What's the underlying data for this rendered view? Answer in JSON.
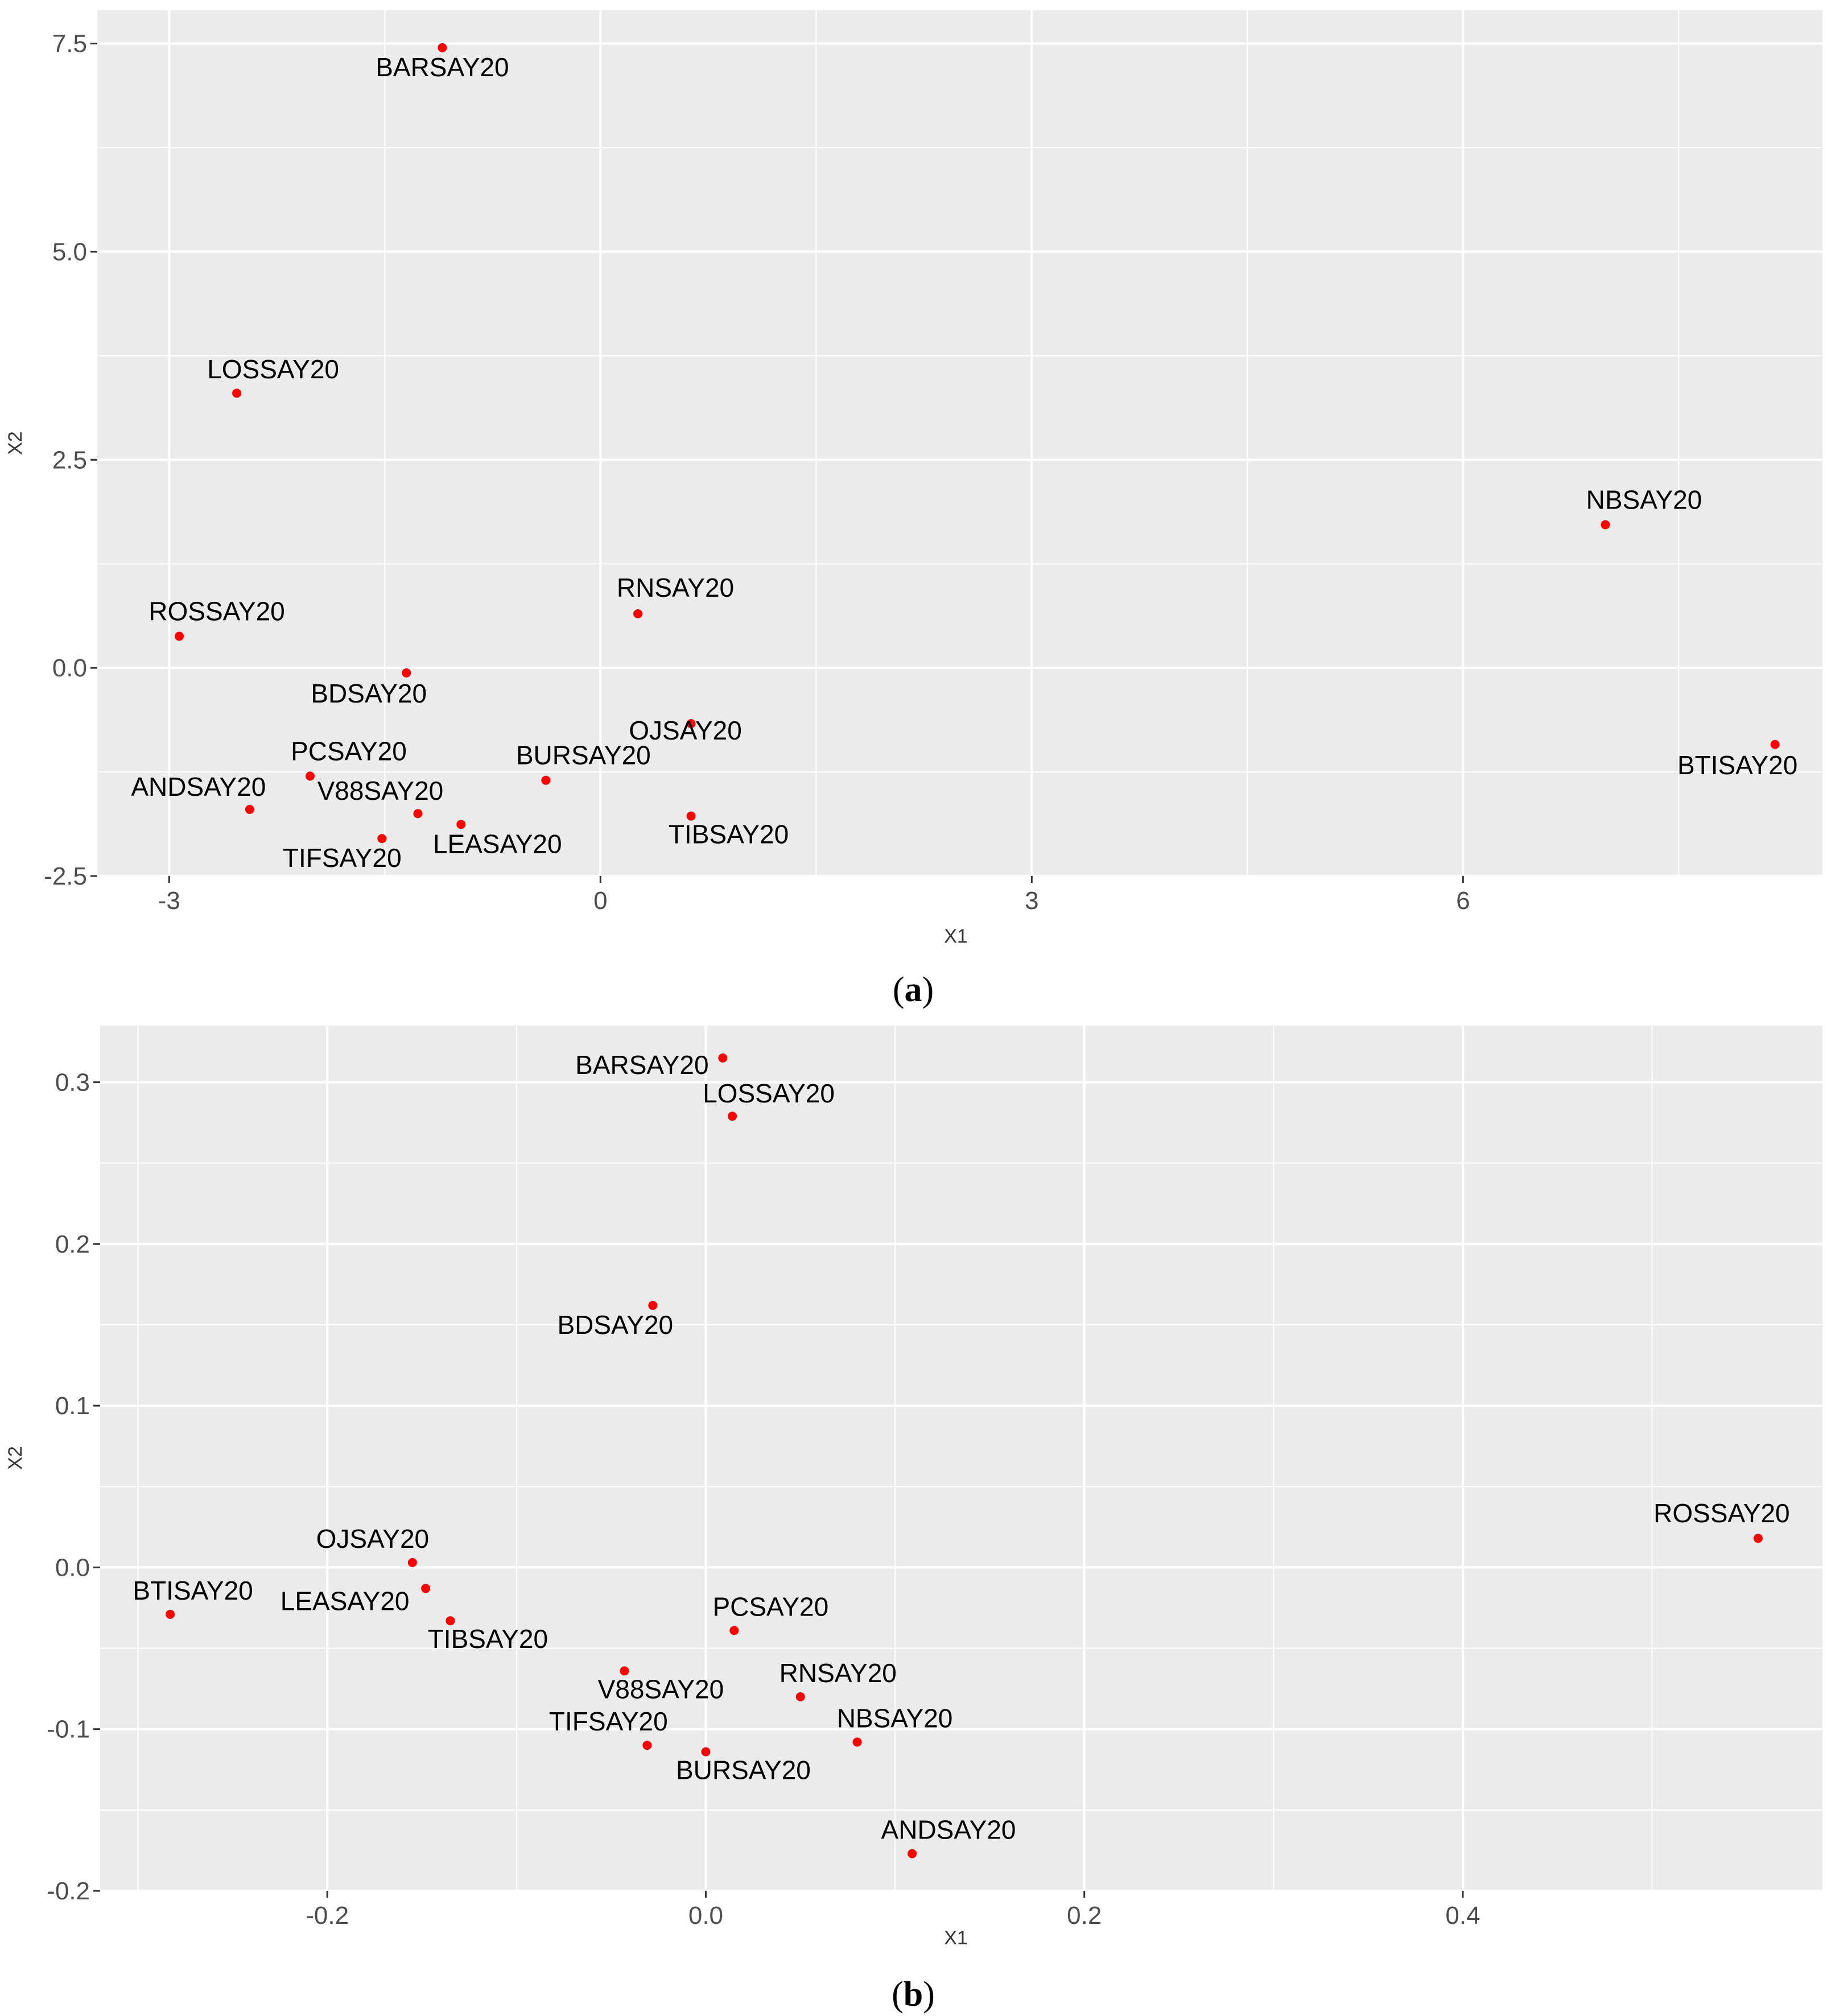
{
  "chart_data": [
    {
      "type": "scatter",
      "panel_label": "a",
      "xlabel": "X1",
      "ylabel": "X2",
      "xlim": [
        -3.5,
        8.5
      ],
      "ylim": [
        -2.5,
        7.9
      ],
      "xticks": [
        -3,
        0,
        3,
        6
      ],
      "xtick_labels": [
        "-3",
        "0",
        "3",
        "6"
      ],
      "yticks": [
        -2.5,
        0.0,
        2.5,
        5.0,
        7.5
      ],
      "ytick_labels": [
        "-2.5",
        "0.0",
        "2.5",
        "5.0",
        "7.5"
      ],
      "grid": true,
      "point_color": "#ff0000",
      "points": [
        {
          "label": "BARSAY20",
          "x": -1.1,
          "y": 7.45
        },
        {
          "label": "LOSSAY20",
          "x": -2.53,
          "y": 3.3
        },
        {
          "label": "NBSAY20",
          "x": 6.99,
          "y": 1.72
        },
        {
          "label": "RNSAY20",
          "x": 0.26,
          "y": 0.65
        },
        {
          "label": "ROSSAY20",
          "x": -2.93,
          "y": 0.38
        },
        {
          "label": "BDSAY20",
          "x": -1.35,
          "y": -0.06
        },
        {
          "label": "OJSAY20",
          "x": 0.63,
          "y": -0.67
        },
        {
          "label": "BTISAY20",
          "x": 8.17,
          "y": -0.92
        },
        {
          "label": "PCSAY20",
          "x": -2.02,
          "y": -1.3
        },
        {
          "label": "BURSAY20",
          "x": -0.38,
          "y": -1.35
        },
        {
          "label": "ANDSAY20",
          "x": -2.44,
          "y": -1.7
        },
        {
          "label": "V88SAY20",
          "x": -1.27,
          "y": -1.75
        },
        {
          "label": "TIBSAY20",
          "x": 0.63,
          "y": -1.78
        },
        {
          "label": "LEASAY20",
          "x": -0.97,
          "y": -1.88
        },
        {
          "label": "TIFSAY20",
          "x": -1.52,
          "y": -2.05
        }
      ]
    },
    {
      "type": "scatter",
      "panel_label": "b",
      "xlabel": "X1",
      "ylabel": "X2",
      "xlim": [
        -0.32,
        0.59
      ],
      "ylim": [
        -0.2,
        0.335
      ],
      "xticks": [
        -0.2,
        0.0,
        0.2,
        0.4
      ],
      "xtick_labels": [
        "-0.2",
        "0.0",
        "0.2",
        "0.4"
      ],
      "yticks": [
        -0.2,
        -0.1,
        0.0,
        0.1,
        0.2,
        0.3
      ],
      "ytick_labels": [
        "-0.2",
        "-0.1",
        "0.0",
        "0.1",
        "0.2",
        "0.3"
      ],
      "grid": true,
      "point_color": "#ff0000",
      "points": [
        {
          "label": "BARSAY20",
          "x": 0.009,
          "y": 0.315
        },
        {
          "label": "LOSSAY20",
          "x": 0.014,
          "y": 0.279
        },
        {
          "label": "BDSAY20",
          "x": -0.028,
          "y": 0.162
        },
        {
          "label": "ROSSAY20",
          "x": 0.556,
          "y": 0.018
        },
        {
          "label": "OJSAY20",
          "x": -0.155,
          "y": 0.003
        },
        {
          "label": "BTISAY20",
          "x": -0.283,
          "y": -0.029
        },
        {
          "label": "LEASAY20",
          "x": -0.148,
          "y": -0.013
        },
        {
          "label": "TIBSAY20",
          "x": -0.135,
          "y": -0.033
        },
        {
          "label": "PCSAY20",
          "x": 0.015,
          "y": -0.039
        },
        {
          "label": "V88SAY20",
          "x": -0.043,
          "y": -0.064
        },
        {
          "label": "RNSAY20",
          "x": 0.05,
          "y": -0.08
        },
        {
          "label": "TIFSAY20",
          "x": -0.031,
          "y": -0.11
        },
        {
          "label": "NBSAY20",
          "x": 0.08,
          "y": -0.108
        },
        {
          "label": "BURSAY20",
          "x": 0.0,
          "y": -0.114
        },
        {
          "label": "ANDSAY20",
          "x": 0.109,
          "y": -0.177
        }
      ]
    }
  ]
}
